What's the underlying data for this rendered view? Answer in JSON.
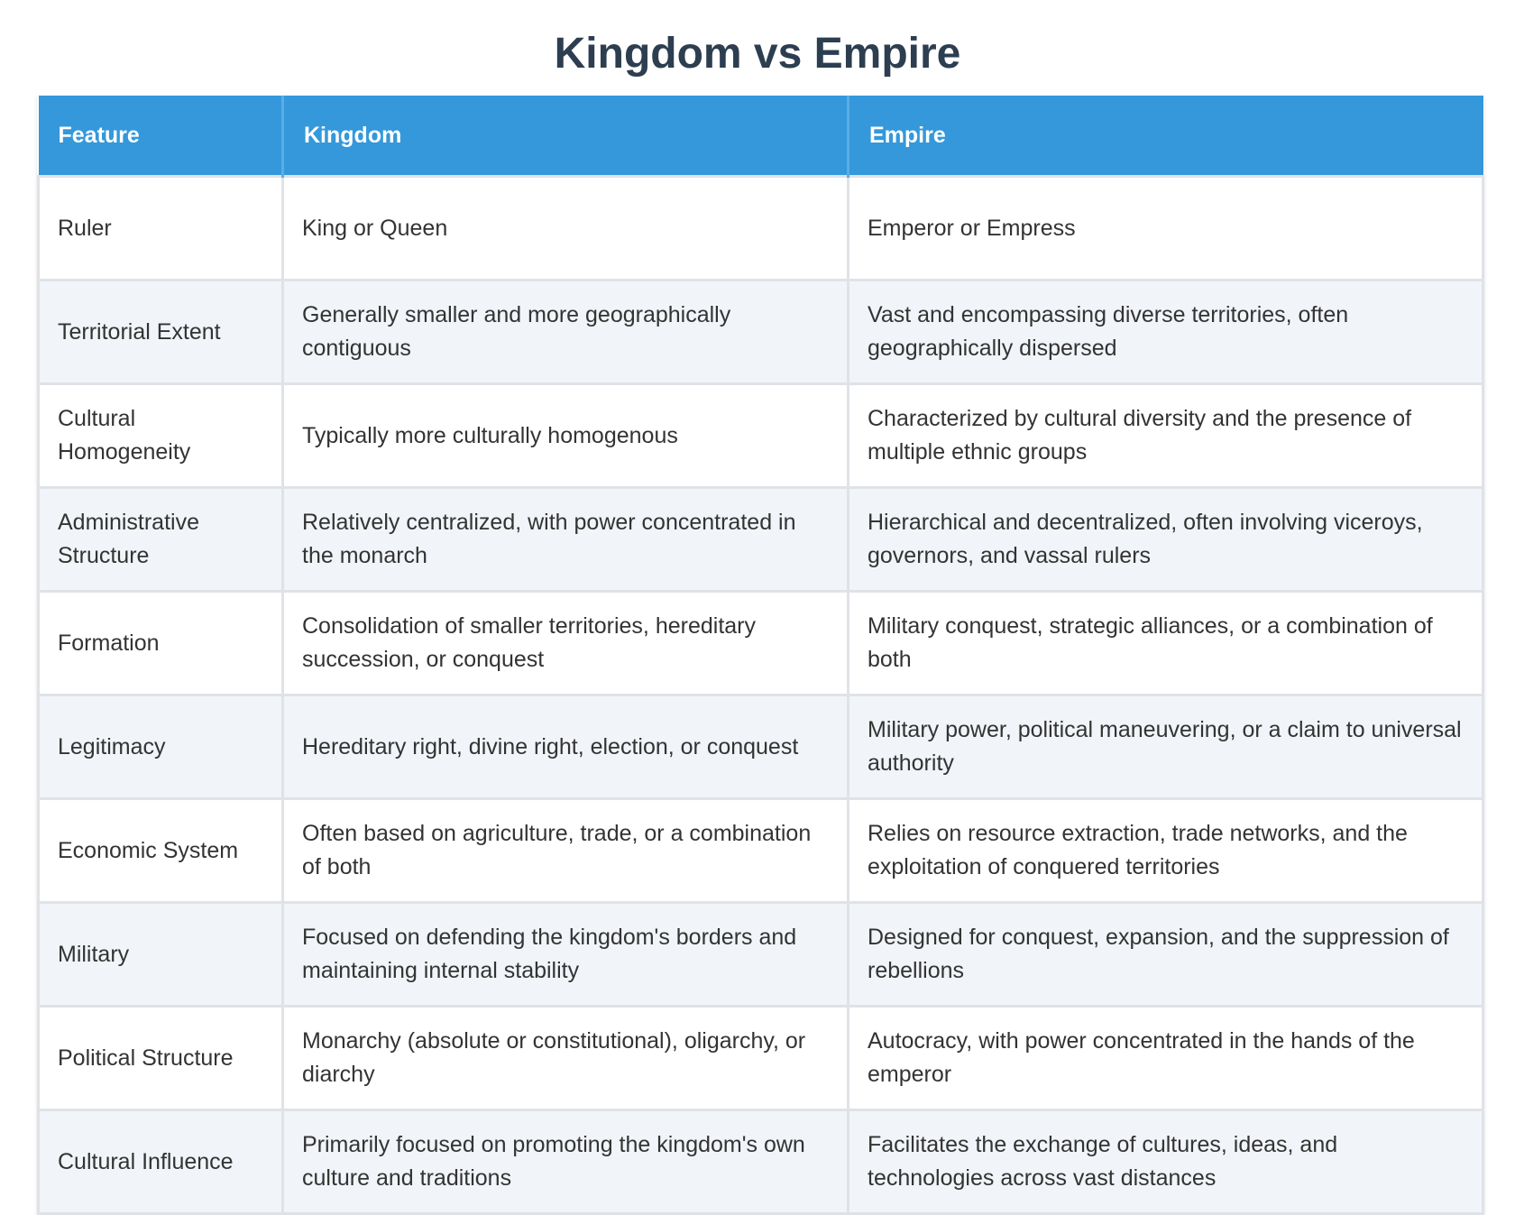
{
  "title": "Kingdom vs Empire",
  "colors": {
    "title": "#2c3e50",
    "header_bg": "#3498db",
    "header_text": "#ffffff",
    "row_alt_bg": "#f1f4f8",
    "border": "#dfe3e7"
  },
  "table": {
    "headers": [
      "Feature",
      "Kingdom",
      "Empire"
    ],
    "rows": [
      [
        "Ruler",
        "King or Queen",
        "Emperor or Empress"
      ],
      [
        "Territorial Extent",
        "Generally smaller and more geographically contiguous",
        "Vast and encompassing diverse territories, often geographically dispersed"
      ],
      [
        "Cultural Homogeneity",
        "Typically more culturally homogenous",
        "Characterized by cultural diversity and the presence of multiple ethnic groups"
      ],
      [
        "Administrative Structure",
        "Relatively centralized, with power concentrated in the monarch",
        "Hierarchical and decentralized, often involving viceroys, governors, and vassal rulers"
      ],
      [
        "Formation",
        "Consolidation of smaller territories, hereditary succession, or conquest",
        "Military conquest, strategic alliances, or a combination of both"
      ],
      [
        "Legitimacy",
        "Hereditary right, divine right, election, or conquest",
        "Military power, political maneuvering, or a claim to universal authority"
      ],
      [
        "Economic System",
        "Often based on agriculture, trade, or a combination of both",
        "Relies on resource extraction, trade networks, and the exploitation of conquered territories"
      ],
      [
        "Military",
        "Focused on defending the kingdom's borders and maintaining internal stability",
        "Designed for conquest, expansion, and the suppression of rebellions"
      ],
      [
        "Political Structure",
        "Monarchy (absolute or constitutional), oligarchy, or diarchy",
        "Autocracy, with power concentrated in the hands of the emperor"
      ],
      [
        "Cultural Influence",
        "Primarily focused on promoting the kingdom's own culture and traditions",
        "Facilitates the exchange of cultures, ideas, and technologies across vast distances"
      ]
    ]
  }
}
